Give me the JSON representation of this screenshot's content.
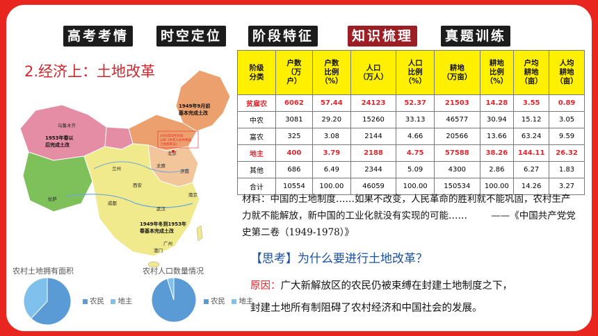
{
  "nav": {
    "tabs": [
      {
        "label": "高考考情",
        "active": false
      },
      {
        "label": "时空定位",
        "active": false
      },
      {
        "label": "阶段特征",
        "active": false
      },
      {
        "label": "知识梳理",
        "active": true
      },
      {
        "label": "真题训练",
        "active": false
      }
    ]
  },
  "section_title": "2.经济上：土地改革",
  "map": {
    "labels": {
      "r1": "1949年9月前\n基本完成土改",
      "r2": "1953年春以\n后完成土改",
      "r3": "1949年冬到1953年\n春基本完成土改",
      "r4": "1950年6月30日\n公布《中华人民共和国\n土地改革法》"
    },
    "cities": [
      "乌鲁木齐",
      "兰州",
      "西安",
      "成都",
      "武汉",
      "拉萨",
      "太原",
      "济南",
      "北京",
      "南京",
      "广州",
      "澳门"
    ]
  },
  "table": {
    "headers": [
      "阶级\n分类",
      "户数\n（万\n户）",
      "户数\n比例\n（%）",
      "人口\n（万人）",
      "人口\n比例\n（%）",
      "耕地\n（万亩）",
      "耕地\n比例\n（%）",
      "户均\n耕地\n（亩）",
      "人均\n耕地\n（亩）"
    ],
    "rows": [
      {
        "cells": [
          "贫雇农",
          "6062",
          "57.44",
          "24123",
          "52.37",
          "21503",
          "14.28",
          "3.55",
          "0.89"
        ],
        "highlight": true
      },
      {
        "cells": [
          "中农",
          "3081",
          "29.20",
          "15260",
          "33.13",
          "46577",
          "30.94",
          "15.12",
          "3.05"
        ],
        "highlight": false
      },
      {
        "cells": [
          "富农",
          "325",
          "3.08",
          "2144",
          "4.66",
          "20566",
          "13.66",
          "63.24",
          "9.59"
        ],
        "highlight": false
      },
      {
        "cells": [
          "地主",
          "400",
          "3.79",
          "2188",
          "4.75",
          "57588",
          "38.26",
          "144.11",
          "26.32"
        ],
        "highlight": true
      },
      {
        "cells": [
          "其他",
          "686",
          "6.49",
          "2344",
          "5.09",
          "4300",
          "2.86",
          "6.27",
          "1.83"
        ],
        "highlight": false
      },
      {
        "cells": [
          "合计",
          "10554",
          "100.00",
          "46059",
          "100.00",
          "150534",
          "100.00",
          "14.26",
          "3.27"
        ],
        "highlight": false
      }
    ]
  },
  "material": {
    "text": "材料：中国的土地制度……如果不改变，人民革命的胜利就不能巩固，农村生产力就不能解放，新中国的工业化就没有实现的可能……",
    "source": "——《中国共产党党史第二卷（1949-1978）》"
  },
  "think": {
    "tag": "【思考】",
    "question": "为什么要进行土地改革？"
  },
  "answer": {
    "label": "原因：",
    "line1": "广大新解放区的农民仍被束缚在封建土地制度之下，",
    "line2": "封建土地所有制阻碍了农村经济和中国社会的发展。"
  },
  "pies": [
    {
      "title": "农村土地拥有面积",
      "legend": [
        "农民",
        "地主"
      ],
      "shares": [
        0.62,
        0.38
      ]
    },
    {
      "title": "农村人口数量情况",
      "legend": [
        "农民",
        "地主"
      ],
      "shares": [
        0.952,
        0.048
      ]
    }
  ],
  "colors": {
    "frame": "#e8251f",
    "active_tab": "#9b1f24",
    "tab": "#1c1c1c",
    "title_red": "#d0262d",
    "think_blue": "#1a4fa3",
    "pie_a": "#5a9bd5",
    "pie_b": "#7fc0ec",
    "table_header": "#fff000"
  }
}
